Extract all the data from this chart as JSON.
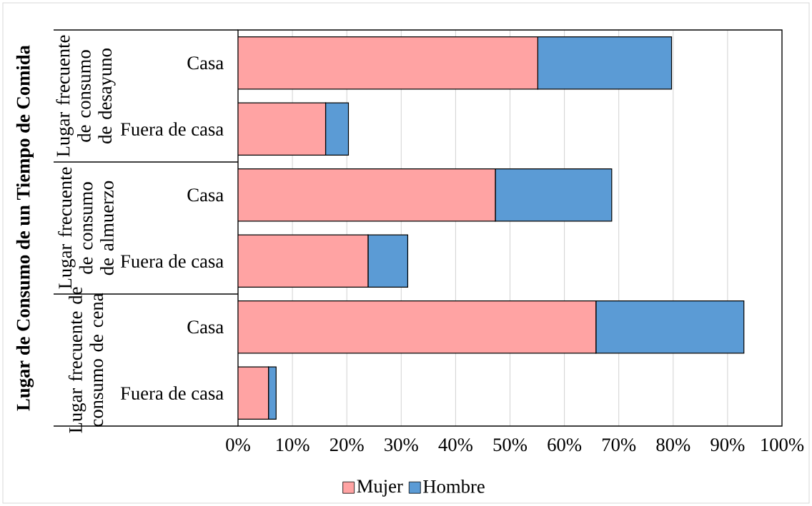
{
  "chart_data": {
    "type": "bar",
    "orientation": "horizontal",
    "stacked": true,
    "ylabel": "Lugar de Consumo de un Tiempo de Comida",
    "categories": [
      "Casa",
      "Fuera de casa",
      "Casa",
      "Fuera de casa",
      "Casa",
      "Fuera de casa"
    ],
    "annotations": [
      "Lugar frecuente de consumo de desayuno",
      "Lugar frecuente de consumo de almuerzo",
      "Lugar frecuente de consumo de cena"
    ],
    "series": [
      {
        "name": "Mujer",
        "color": "#ffa3a3",
        "values": [
          55.1,
          16.1,
          47.3,
          23.9,
          65.8,
          5.6
        ]
      },
      {
        "name": "Hombre",
        "color": "#5b9bd5",
        "values": [
          24.6,
          4.2,
          21.4,
          7.3,
          27.2,
          1.4
        ]
      }
    ],
    "xlim": [
      0,
      100
    ],
    "xticks": [
      {
        "value": 0,
        "label": "0%"
      },
      {
        "value": 10,
        "label": "10%"
      },
      {
        "value": 20,
        "label": "20%"
      },
      {
        "value": 30,
        "label": "30%"
      },
      {
        "value": 40,
        "label": "40%"
      },
      {
        "value": 50,
        "label": "50%"
      },
      {
        "value": 60,
        "label": "60%"
      },
      {
        "value": 70,
        "label": "70%"
      },
      {
        "value": 80,
        "label": "80%"
      },
      {
        "value": 90,
        "label": "90%"
      },
      {
        "value": 100,
        "label": "100%"
      }
    ],
    "grid": "x",
    "legend": "bottom"
  }
}
